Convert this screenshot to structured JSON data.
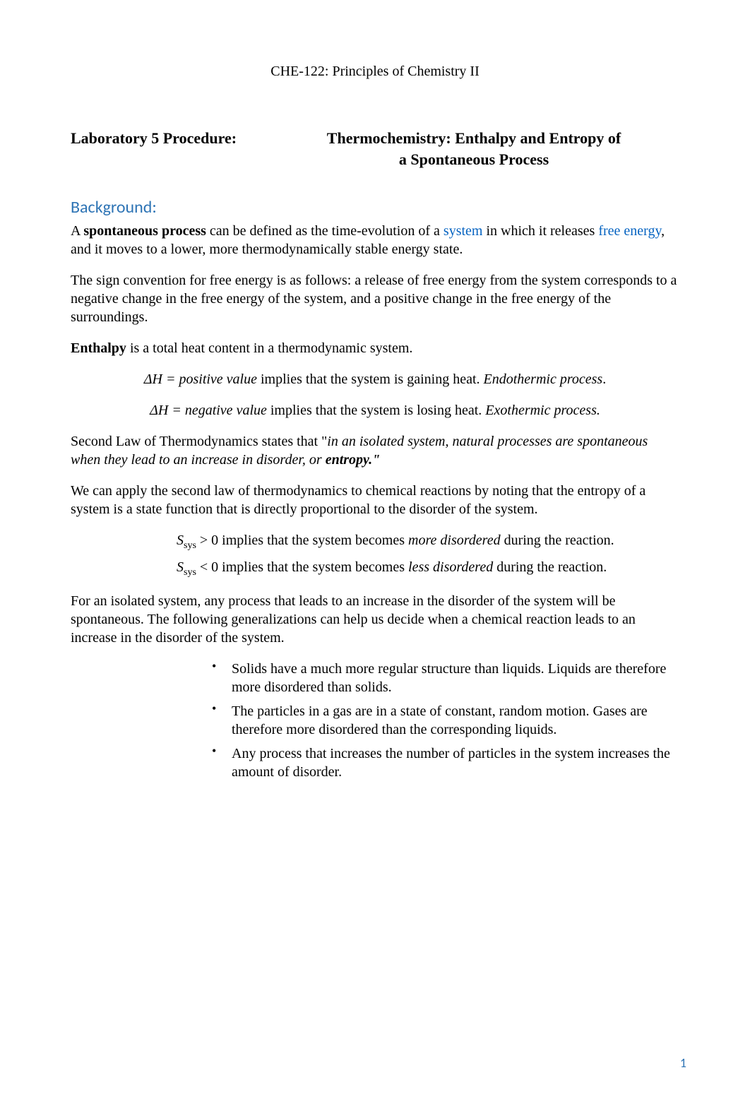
{
  "course_line": "CHE-122: Principles of Chemistry II",
  "lab": {
    "left": "Laboratory 5 Procedure:",
    "right_l1": "Thermochemistry: Enthalpy and Entropy of",
    "right_l2": "a Spontaneous Process"
  },
  "section_heading": "Background:",
  "p_spont_1a": "A ",
  "p_spont_1b_bold": "spontaneous process",
  "p_spont_1c": " can be defined as the time-evolution of a ",
  "p_spont_1d_link": "system",
  "p_spont_1e": " in which it releases ",
  "p_spont_1f_link": "free energy",
  "p_spont_1g": ", and it moves to a lower, more thermodynamically stable energy state.",
  "p_sign": "The sign convention for free energy is as follows: a release of free energy from the system corresponds to a negative change in the free energy of the system, and a positive change in the free energy of the surroundings.",
  "p_enth_a_bold": "Enthalpy",
  "p_enth_b": " is a total heat content in a thermodynamic system.",
  "dh_pos_a_i": " ΔH = positive value",
  "dh_pos_b": " implies that the system is gaining heat. ",
  "dh_pos_c_i": "Endothermic process",
  "dh_pos_d": ".",
  "dh_neg_a_i": "ΔH = negative value",
  "dh_neg_b": " implies that the system is losing heat. ",
  "dh_neg_c_i": "Exothermic process.",
  "second_law_a": "Second Law of Thermodynamics states that \"",
  "second_law_b_i": "in an isolated system, natural processes are spontaneous when they lead to an increase in disorder, or ",
  "second_law_c_bi": "entropy.\"",
  "p_apply": "We can apply the second law of thermodynamics to chemical reactions by noting that the entropy of a system is a state function that is directly proportional to the disorder of the system.",
  "s_pos_a_i": "S",
  "s_pos_sub": "sys",
  "s_pos_b": " > 0 implies that the system becomes ",
  "s_pos_c_i": "more disordered",
  "s_pos_d": " during the reaction.",
  "s_neg_a_i": "S",
  "s_neg_sub": "sys",
  "s_neg_b": " < 0 implies that the system becomes ",
  "s_neg_c_i": "less disordered",
  "s_neg_d": " during the reaction.",
  "p_isolated": "For an isolated system, any process that leads to an increase in the disorder of the system will be spontaneous. The following generalizations can help us decide when a chemical reaction leads to an increase in the disorder of the system.",
  "bullets": [
    "Solids have a much more regular structure than liquids. Liquids are therefore more disordered than solids.",
    "The particles in a gas are in a state of constant, random motion. Gases are therefore more disordered than the corresponding liquids.",
    "Any process that increases the number of particles in the system increases the amount of disorder."
  ],
  "page_number": "1",
  "colors": {
    "heading_blue": "#2e74b5",
    "link_blue": "#0563c1",
    "text": "#000000",
    "background": "#ffffff"
  },
  "fonts": {
    "body_family": "Times New Roman",
    "heading_family": "Calibri",
    "body_size_pt": 15,
    "heading_size_pt": 18,
    "title_size_pt": 17
  }
}
